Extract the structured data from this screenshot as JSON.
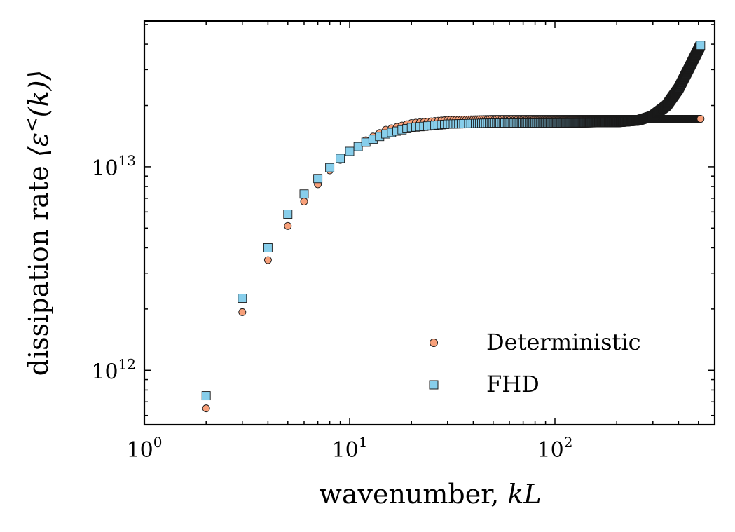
{
  "chart_data": {
    "type": "scatter",
    "xscale": "log",
    "yscale": "log",
    "xlim": [
      1,
      600
    ],
    "ylim": [
      540000000000.0,
      52000000000000.0
    ],
    "xlabel_main": "wavenumber, ",
    "xlabel_var": "kL",
    "ylabel_main": "dissipation rate ",
    "ylabel_math": "⟨ε",
    "ylabel_sup": "<",
    "ylabel_math_end": "(k)⟩",
    "x_ticks": [
      {
        "value": 1,
        "base": "10",
        "exp": "0"
      },
      {
        "value": 10,
        "base": "10",
        "exp": "1"
      },
      {
        "value": 100,
        "base": "10",
        "exp": "2"
      }
    ],
    "y_ticks": [
      {
        "value": 1000000000000.0,
        "base": "10",
        "exp": "12"
      },
      {
        "value": 10000000000000.0,
        "base": "10",
        "exp": "13"
      }
    ],
    "legend_position": "lower-right",
    "series": [
      {
        "name": "Deterministic",
        "marker": "circle",
        "color": "#f7a07a",
        "edge_color": "#1a1a1a",
        "x_range": [
          2,
          512
        ],
        "points": [
          [
            2,
            650000000000.0
          ],
          [
            3,
            1930000000000.0
          ],
          [
            4,
            3480000000000.0
          ],
          [
            5,
            5120000000000.0
          ],
          [
            6,
            6750000000000.0
          ],
          [
            7,
            8200000000000.0
          ],
          [
            8,
            9600000000000.0
          ],
          [
            9,
            10800000000000.0
          ],
          [
            10,
            11900000000000.0
          ],
          [
            12,
            13500000000000.0
          ],
          [
            15,
            15200000000000.0
          ],
          [
            20,
            16400000000000.0
          ],
          [
            30,
            17000000000000.0
          ],
          [
            50,
            17200000000000.0
          ],
          [
            100,
            17200000000000.0
          ],
          [
            200,
            17200000000000.0
          ],
          [
            300,
            17200000000000.0
          ],
          [
            512,
            17200000000000.0
          ]
        ]
      },
      {
        "name": "FHD",
        "marker": "square",
        "color": "#87ceeb",
        "edge_color": "#1a1a1a",
        "x_range": [
          2,
          512
        ],
        "points": [
          [
            2,
            750000000000.0
          ],
          [
            3,
            2260000000000.0
          ],
          [
            4,
            4000000000000.0
          ],
          [
            5,
            5850000000000.0
          ],
          [
            6,
            7350000000000.0
          ],
          [
            7,
            8750000000000.0
          ],
          [
            8,
            9900000000000.0
          ],
          [
            9,
            11000000000000.0
          ],
          [
            10,
            11900000000000.0
          ],
          [
            12,
            13200000000000.0
          ],
          [
            15,
            14500000000000.0
          ],
          [
            20,
            15600000000000.0
          ],
          [
            30,
            16200000000000.0
          ],
          [
            50,
            16400000000000.0
          ],
          [
            100,
            16400000000000.0
          ],
          [
            200,
            16500000000000.0
          ],
          [
            250,
            16800000000000.0
          ],
          [
            300,
            17800000000000.0
          ],
          [
            350,
            20000000000000.0
          ],
          [
            400,
            24200000000000.0
          ],
          [
            450,
            30500000000000.0
          ],
          [
            512,
            39500000000000.0
          ]
        ]
      }
    ]
  }
}
